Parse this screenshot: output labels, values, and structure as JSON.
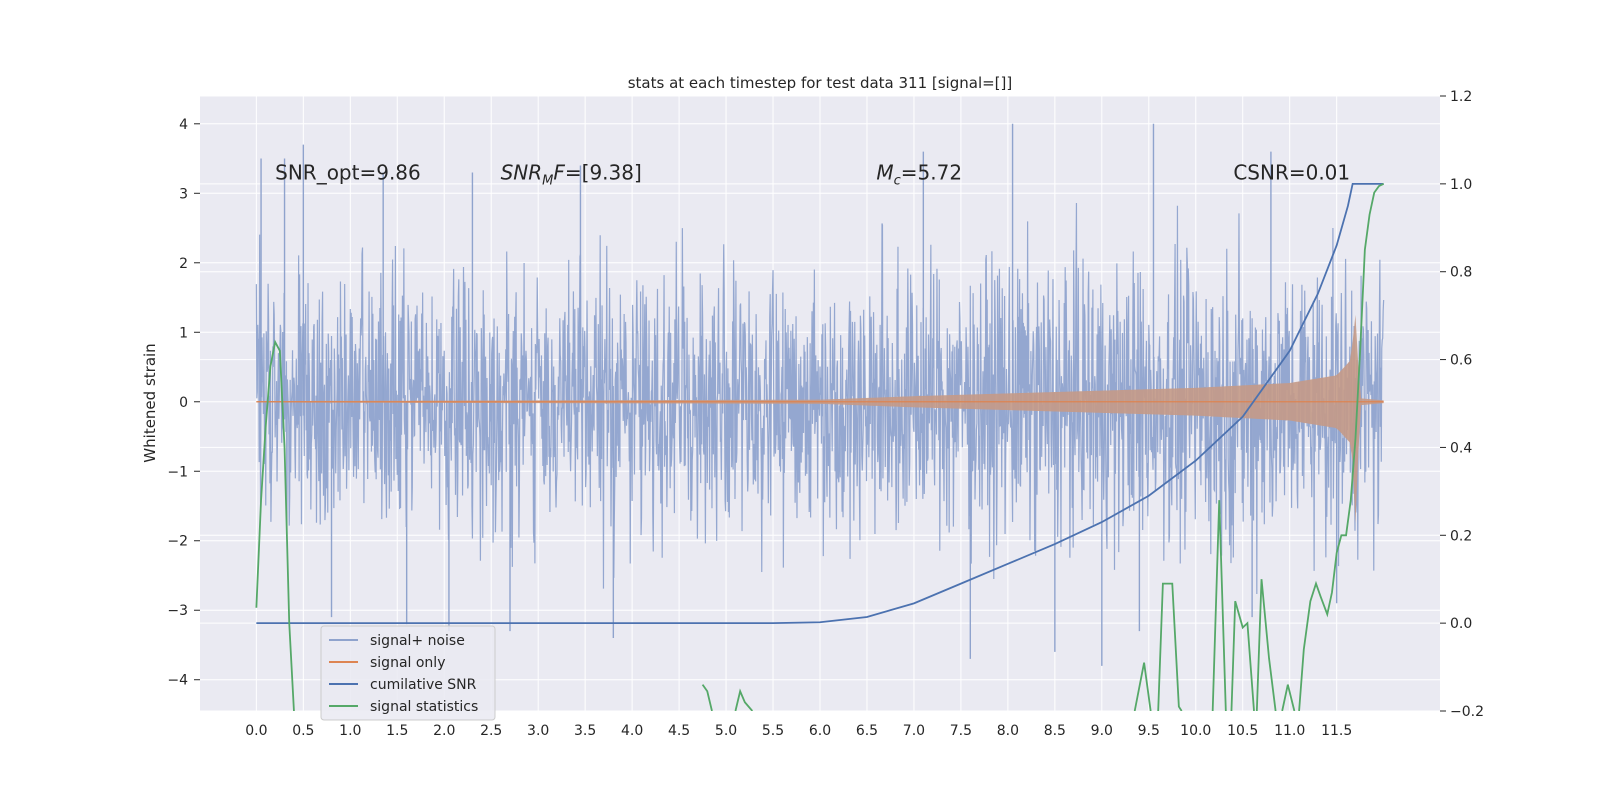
{
  "chart_data": {
    "type": "line",
    "title": "stats at each timestep for test data 311 [signal=[]]",
    "ylabel": "Whitened strain",
    "y2label": "",
    "xlabel": "",
    "xlim": [
      -0.6,
      12.6
    ],
    "ylim": [
      -4.45,
      4.4
    ],
    "y2lim": [
      -0.2,
      1.2
    ],
    "xticks": [
      0.0,
      0.5,
      1.0,
      1.5,
      2.0,
      2.5,
      3.0,
      3.5,
      4.0,
      4.5,
      5.0,
      5.5,
      6.0,
      6.5,
      7.0,
      7.5,
      8.0,
      8.5,
      9.0,
      9.5,
      10.0,
      10.5,
      11.0,
      11.5
    ],
    "xtick_labels": [
      "0.0",
      "0.5",
      "1.0",
      "1.5",
      "2.0",
      "2.5",
      "3.0",
      "3.5",
      "4.0",
      "4.5",
      "5.0",
      "5.5",
      "6.0",
      "6.5",
      "7.0",
      "7.5",
      "8.0",
      "8.5",
      "9.0",
      "9.5",
      "10.0",
      "10.5",
      "11.0",
      "11.5"
    ],
    "yticks": [
      -4,
      -3,
      -2,
      -1,
      0,
      1,
      2,
      3,
      4
    ],
    "ytick_labels": [
      "−4",
      "−3",
      "−2",
      "−1",
      "0",
      "1",
      "2",
      "3",
      "4"
    ],
    "y2ticks": [
      -0.2,
      0.0,
      0.2,
      0.4,
      0.6,
      0.8,
      1.0,
      1.2
    ],
    "y2tick_labels": [
      "−0.2",
      "0.0",
      "0.2",
      "0.4",
      "0.6",
      "0.8",
      "1.0",
      "1.2"
    ],
    "grid": true,
    "legend_position": "bottom-left",
    "annotations": [
      {
        "text": "SNR_opt=9.86",
        "x": 0.2,
        "y": 3.2
      },
      {
        "text": "SNR_MF=[9.38]",
        "x": 2.6,
        "y": 3.2,
        "main": "SNR",
        "sub": "M",
        "after": "F=[9.38]"
      },
      {
        "text": "M_c=5.72",
        "x": 6.6,
        "y": 3.2,
        "main": "M",
        "sub": "c",
        "after": "=5.72"
      },
      {
        "text": "CSNR=0.01",
        "x": 10.4,
        "y": 3.2
      }
    ],
    "series": [
      {
        "name": "signal+ noise",
        "color": "#8fa3cd",
        "axis": "left",
        "style": "noise",
        "x_range": [
          0.0,
          12.0
        ],
        "envelope": [
          [
            0.0,
            1.6
          ],
          [
            1.0,
            1.7
          ],
          [
            2.0,
            1.6
          ],
          [
            4.0,
            1.8
          ],
          [
            6.0,
            1.7
          ],
          [
            8.0,
            1.8
          ],
          [
            10.0,
            1.9
          ],
          [
            12.0,
            1.8
          ]
        ],
        "peaks": [
          [
            0.05,
            3.5
          ],
          [
            0.5,
            3.7
          ],
          [
            0.3,
            3.5
          ],
          [
            1.35,
            3.3
          ],
          [
            2.3,
            3.3
          ],
          [
            3.45,
            3.4
          ],
          [
            7.1,
            3.6
          ],
          [
            8.05,
            4.0
          ],
          [
            9.55,
            4.0
          ],
          [
            10.8,
            3.6
          ],
          [
            0.8,
            -3.1
          ],
          [
            1.6,
            -3.2
          ],
          [
            2.05,
            -3.3
          ],
          [
            2.7,
            -3.3
          ],
          [
            3.8,
            -3.4
          ],
          [
            7.6,
            -3.7
          ],
          [
            8.5,
            -3.6
          ],
          [
            9.0,
            -3.8
          ],
          [
            9.4,
            -3.3
          ],
          [
            10.6,
            -3.1
          ],
          [
            11.5,
            -2.9
          ]
        ]
      },
      {
        "name": "signal only",
        "color": "#dd8452",
        "axis": "left",
        "style": "chirp",
        "amplitude": [
          [
            0.0,
            0.01
          ],
          [
            6.0,
            0.03
          ],
          [
            7.0,
            0.08
          ],
          [
            8.0,
            0.12
          ],
          [
            9.0,
            0.16
          ],
          [
            10.0,
            0.2
          ],
          [
            11.0,
            0.27
          ],
          [
            11.5,
            0.38
          ],
          [
            11.65,
            0.6
          ],
          [
            11.7,
            1.25
          ],
          [
            11.75,
            0.05
          ],
          [
            12.0,
            0.02
          ]
        ]
      },
      {
        "name": "cumilative SNR",
        "color": "#4c72b0",
        "axis": "right",
        "style": "line",
        "points": [
          [
            0.0,
            0.0
          ],
          [
            5.5,
            0.0
          ],
          [
            6.0,
            0.002
          ],
          [
            6.5,
            0.014
          ],
          [
            7.0,
            0.045
          ],
          [
            7.5,
            0.09
          ],
          [
            8.0,
            0.135
          ],
          [
            8.5,
            0.18
          ],
          [
            9.0,
            0.23
          ],
          [
            9.5,
            0.29
          ],
          [
            10.0,
            0.37
          ],
          [
            10.5,
            0.47
          ],
          [
            11.0,
            0.62
          ],
          [
            11.3,
            0.75
          ],
          [
            11.5,
            0.86
          ],
          [
            11.62,
            0.95
          ],
          [
            11.67,
            1.0
          ],
          [
            12.0,
            1.0
          ]
        ]
      },
      {
        "name": "signal statistics",
        "color": "#55a868",
        "axis": "right",
        "style": "line",
        "points": [
          [
            0.0,
            0.035
          ],
          [
            0.05,
            0.28
          ],
          [
            0.1,
            0.45
          ],
          [
            0.15,
            0.585
          ],
          [
            0.2,
            0.64
          ],
          [
            0.25,
            0.62
          ],
          [
            0.3,
            0.4
          ],
          [
            0.35,
            0.0
          ],
          [
            0.4,
            -0.2
          ]
        ],
        "segments": [
          [
            [
              4.75,
              -0.14
            ],
            [
              4.8,
              -0.155
            ],
            [
              4.85,
              -0.2
            ]
          ],
          [
            [
              5.1,
              -0.2
            ],
            [
              5.15,
              -0.155
            ],
            [
              5.2,
              -0.18
            ],
            [
              5.28,
              -0.2
            ]
          ],
          [
            [
              9.35,
              -0.2
            ],
            [
              9.45,
              -0.09
            ],
            [
              9.52,
              -0.2
            ]
          ],
          [
            [
              9.6,
              -0.2
            ],
            [
              9.65,
              0.09
            ],
            [
              9.75,
              0.09
            ],
            [
              9.82,
              -0.19
            ],
            [
              9.85,
              -0.2
            ]
          ],
          [
            [
              10.18,
              -0.2
            ],
            [
              10.25,
              0.28
            ],
            [
              10.32,
              -0.2
            ]
          ],
          [
            [
              10.38,
              -0.2
            ],
            [
              10.42,
              0.05
            ],
            [
              10.5,
              -0.01
            ],
            [
              10.55,
              0.0
            ],
            [
              10.62,
              -0.2
            ]
          ],
          [
            [
              10.65,
              -0.2
            ],
            [
              10.7,
              0.1
            ],
            [
              10.78,
              -0.08
            ],
            [
              10.85,
              -0.2
            ]
          ],
          [
            [
              10.92,
              -0.2
            ],
            [
              10.98,
              -0.14
            ],
            [
              11.05,
              -0.2
            ]
          ],
          [
            [
              11.1,
              -0.2
            ],
            [
              11.15,
              -0.06
            ],
            [
              11.22,
              0.05
            ],
            [
              11.28,
              0.09
            ],
            [
              11.33,
              0.06
            ],
            [
              11.4,
              0.02
            ],
            [
              11.45,
              0.07
            ],
            [
              11.5,
              0.16
            ],
            [
              11.55,
              0.2
            ],
            [
              11.6,
              0.2
            ],
            [
              11.65,
              0.28
            ],
            [
              11.7,
              0.42
            ],
            [
              11.75,
              0.62
            ],
            [
              11.8,
              0.85
            ],
            [
              11.85,
              0.93
            ],
            [
              11.9,
              0.98
            ],
            [
              11.95,
              0.995
            ],
            [
              12.0,
              1.0
            ]
          ]
        ]
      }
    ]
  }
}
